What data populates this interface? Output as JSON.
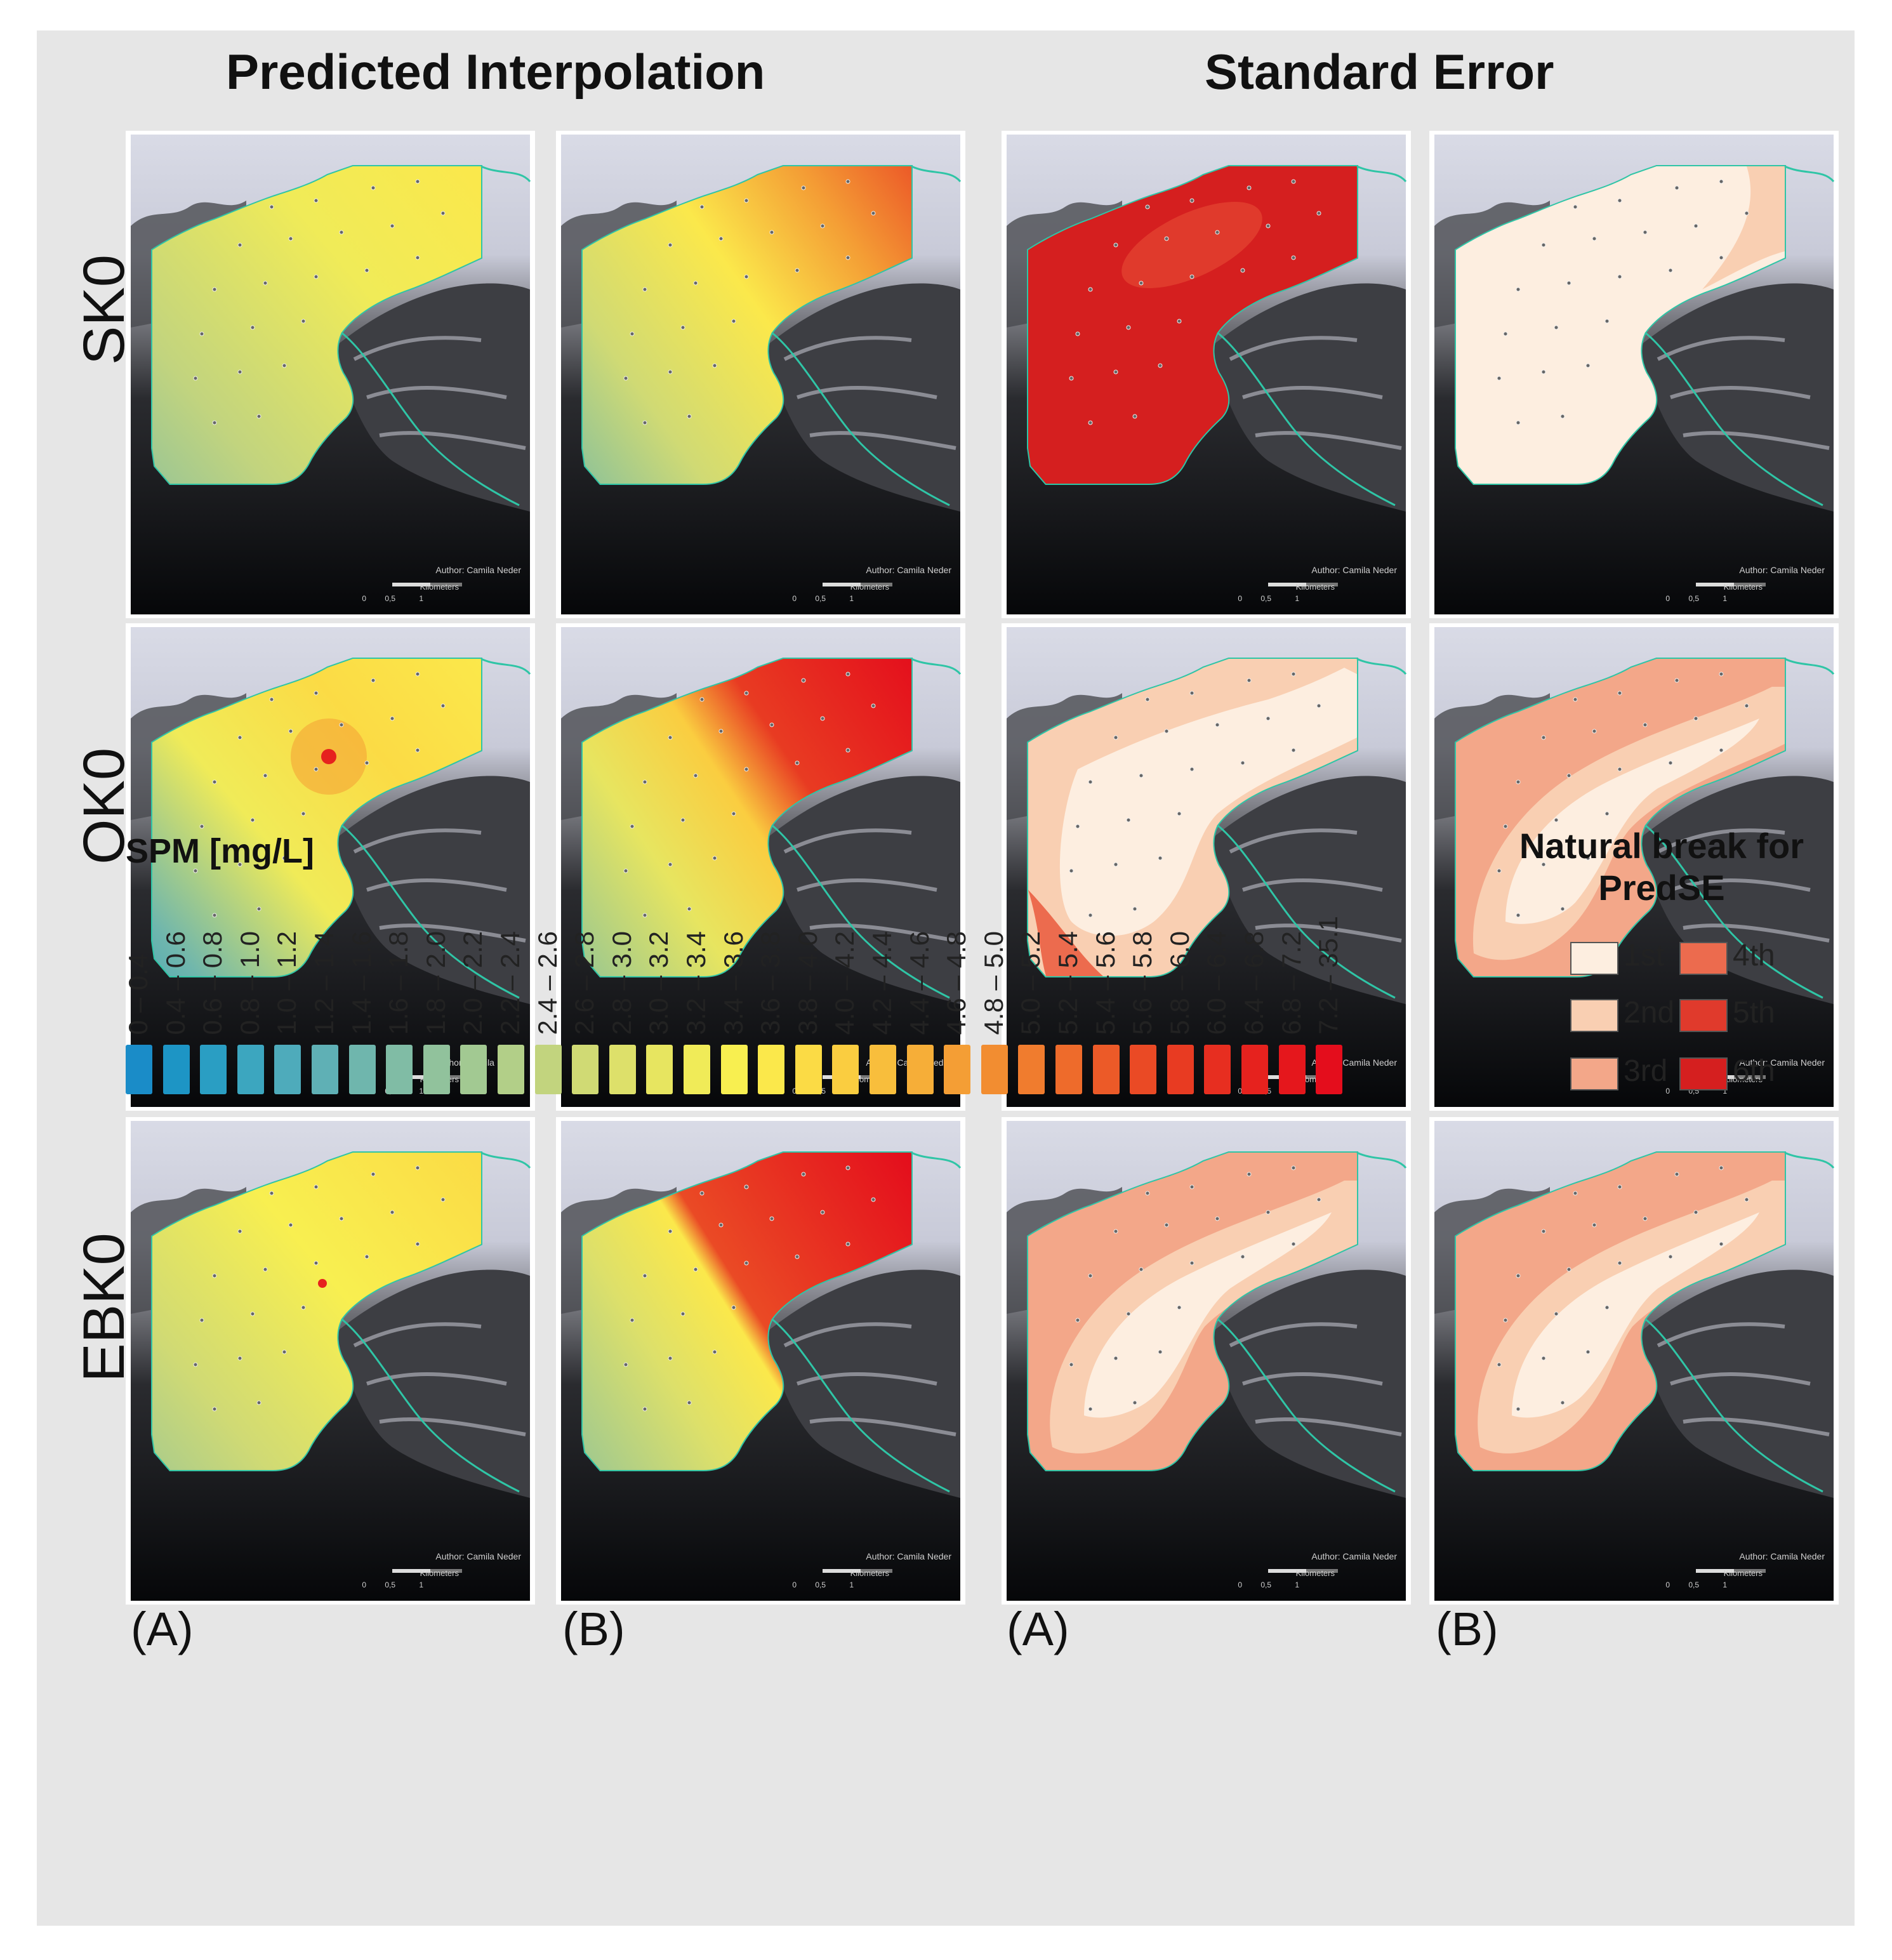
{
  "titles": {
    "predicted": "Predicted Interpolation",
    "standard_error": "Standard Error"
  },
  "rows": [
    {
      "label": "SK0"
    },
    {
      "label": "OK0"
    },
    {
      "label": "EBK0"
    }
  ],
  "columns": [
    {
      "label": "(A)"
    },
    {
      "label": "(B)"
    },
    {
      "label": "(A)"
    },
    {
      "label": "(B)"
    }
  ],
  "map_text": {
    "author": "Author: Camila Neder",
    "scale_unit": "Kilometers",
    "scale_ticks": [
      "0",
      "0,5",
      "1"
    ]
  },
  "spm_legend": {
    "title": "SPM [mg/L]",
    "ranges": [
      "0 – 0.4",
      "0.4 – 0.6",
      "0.6 – 0.8",
      "0.8 – 1.0",
      "1.0 – 1.2",
      "1.2 – 1.4",
      "1.4 – 1.6",
      "1.6 – 1.8",
      "1.8 – 2.0",
      "2.0 – 2.2",
      "2.2 – 2.4",
      "2.4 – 2.6",
      "2.6 – 2.8",
      "2.8 – 3.0",
      "3.0 – 3.2",
      "3.2 – 3.4",
      "3.4 – 3.6",
      "3.6 – 3.8",
      "3.8 – 4.0",
      "4.0 – 4.2",
      "4.2 – 4.4",
      "4.4 – 4.6",
      "4.6 – 4.8",
      "4.8 – 5.0",
      "5.0 – 5.2",
      "5.2 – 5.4",
      "5.4 – 5.6",
      "5.6 – 5.8",
      "5.8 – 6.0",
      "6.0 – 6.4",
      "6.4 – 6.8",
      "6.8 – 7.2",
      "7.2 – 35.1"
    ],
    "colors": [
      "#1a8cc8",
      "#1d95c5",
      "#2a9ec3",
      "#3ca6bf",
      "#4eabbb",
      "#5fb0b5",
      "#6fb6ad",
      "#80bca5",
      "#91c29c",
      "#a2c992",
      "#b2cf88",
      "#c2d47e",
      "#d0da74",
      "#dde06a",
      "#e7e560",
      "#f0eb58",
      "#f8ef50",
      "#fbe84b",
      "#fbdb45",
      "#facd40",
      "#f8be3c",
      "#f6ae38",
      "#f49e35",
      "#f28d31",
      "#f07c2e",
      "#ee6b2b",
      "#ec5a28",
      "#ea4a25",
      "#e83b22",
      "#e72e20",
      "#e6221e",
      "#e5171c",
      "#e40d1c"
    ]
  },
  "se_legend": {
    "title_line1": "Natural break for",
    "title_line2": "PredSE",
    "classes": [
      {
        "label": "1st",
        "color": "#fdeee0"
      },
      {
        "label": "2nd",
        "color": "#f9cfb2"
      },
      {
        "label": "3rd",
        "color": "#f3a789"
      },
      {
        "label": "4th",
        "color": "#ec6b4e"
      },
      {
        "label": "5th",
        "color": "#e03a2c"
      },
      {
        "label": "6th",
        "color": "#d51f1f"
      }
    ]
  }
}
